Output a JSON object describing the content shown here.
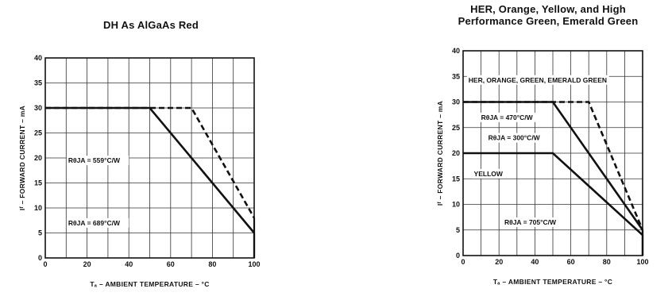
{
  "chart_data": [
    {
      "type": "line",
      "title": "DH As AlGaAs Red",
      "xlabel": "Tₐ – AMBIENT TEMPERATURE – °C",
      "ylabel": "Iᶠ – FORWARD CURRENT – mA",
      "xlim": [
        0,
        100
      ],
      "ylim": [
        0,
        40
      ],
      "xticks": [
        "0",
        "20",
        "40",
        "60",
        "80",
        "100"
      ],
      "yticks": [
        "0",
        "5",
        "10",
        "15",
        "20",
        "25",
        "30",
        "35",
        "40"
      ],
      "grid": true,
      "series": [
        {
          "name": "RθJA = 559°C/W",
          "style": "dashed",
          "x": [
            0,
            70,
            100
          ],
          "y": [
            30,
            30,
            8
          ]
        },
        {
          "name": "RθJA = 689°C/W",
          "style": "solid",
          "x": [
            0,
            50,
            100
          ],
          "y": [
            30,
            30,
            5
          ]
        }
      ],
      "annotations": [
        {
          "text": "RθJA = 559°C/W",
          "x": 11,
          "y": 19.5
        },
        {
          "text": "RθJA = 689°C/W",
          "x": 11,
          "y": 7
        }
      ]
    },
    {
      "type": "line",
      "title": "HER, Orange, Yellow, and High Performance Green, Emerald Green",
      "title_lines": [
        "HER, Orange, Yellow, and High",
        "Performance Green, Emerald Green"
      ],
      "xlabel": "Tₐ – AMBIENT TEMPERATURE – °C",
      "ylabel": "Iᶠ – FORWARD CURRENT – mA",
      "xlim": [
        0,
        100
      ],
      "ylim": [
        0,
        40
      ],
      "xticks": [
        "0",
        "20",
        "40",
        "60",
        "80",
        "100"
      ],
      "yticks": [
        "0",
        "5",
        "10",
        "15",
        "20",
        "25",
        "30",
        "35",
        "40"
      ],
      "grid": true,
      "series": [
        {
          "name": "RθJA = 300°C/W",
          "style": "dashed",
          "x": [
            0,
            70,
            100
          ],
          "y": [
            30,
            30,
            5
          ]
        },
        {
          "name": "RθJA = 470°C/W",
          "style": "solid",
          "x": [
            0,
            50,
            100
          ],
          "y": [
            30,
            30,
            5
          ]
        },
        {
          "name": "RθJA = 705°C/W",
          "style": "solid",
          "x": [
            0,
            50,
            100
          ],
          "y": [
            20,
            20,
            4
          ]
        }
      ],
      "annotations": [
        {
          "text": "HER, ORANGE, GREEN, EMERALD GREEN",
          "x": 3,
          "y": 34.3
        },
        {
          "text": "RθJA = 470°C/W",
          "x": 10,
          "y": 27
        },
        {
          "text": "RθJA = 300°C/W",
          "x": 14,
          "y": 23
        },
        {
          "text": "YELLOW",
          "x": 6,
          "y": 16
        },
        {
          "text": "RθJA = 705°C/W",
          "x": 23,
          "y": 6.5
        }
      ]
    }
  ]
}
